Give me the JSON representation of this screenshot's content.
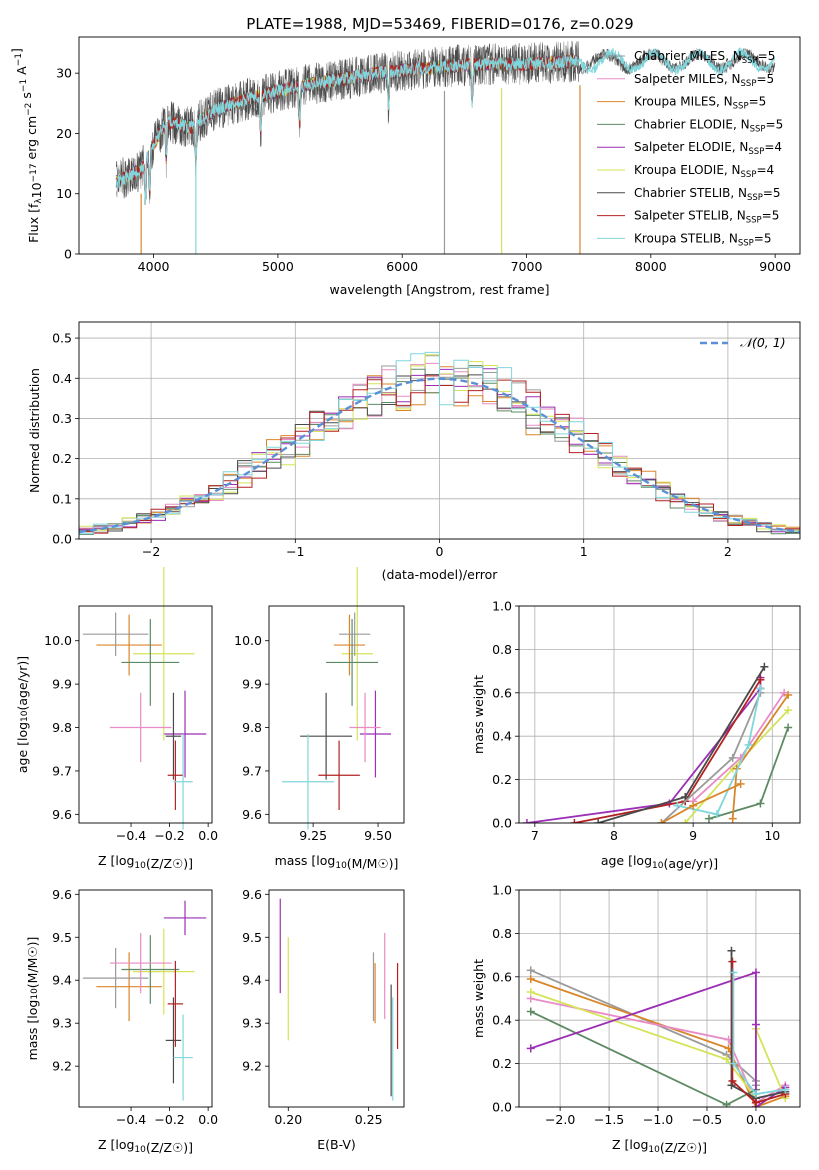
{
  "figure": {
    "title": "PLATE=1988, MJD=53469, FIBERID=0176, z=0.029"
  },
  "models": [
    {
      "name": "Chabrier MILES",
      "nssp": "5",
      "color": "#9a9a9a"
    },
    {
      "name": "Salpeter MILES",
      "nssp": "5",
      "color": "#e98bc6"
    },
    {
      "name": "Kroupa MILES",
      "nssp": "5",
      "color": "#d9862a"
    },
    {
      "name": "Chabrier ELODIE",
      "nssp": "5",
      "color": "#5d8a63"
    },
    {
      "name": "Salpeter ELODIE",
      "nssp": "4",
      "color": "#9b2fb5"
    },
    {
      "name": "Kroupa ELODIE",
      "nssp": "4",
      "color": "#d5e358"
    },
    {
      "name": "Chabrier STELIB",
      "nssp": "5",
      "color": "#4a4a4a"
    },
    {
      "name": "Salpeter STELIB",
      "nssp": "5",
      "color": "#b22222"
    },
    {
      "name": "Kroupa STELIB",
      "nssp": "5",
      "color": "#7fd6dc"
    }
  ],
  "chart_data": [
    {
      "id": "spectrum",
      "type": "line",
      "xlabel": "wavelength [Angstrom, rest frame]",
      "ylabel": "Flux [f_λ10^-17 erg cm^-2 s^-1 A^-1]",
      "xlim": [
        3400,
        9200
      ],
      "ylim": [
        0,
        36
      ],
      "xticks": [
        4000,
        5000,
        6000,
        7000,
        8000,
        9000
      ],
      "yticks": [
        0,
        10,
        20,
        30
      ],
      "legend": "top-right",
      "continuum_points": [
        [
          3700,
          12
        ],
        [
          3900,
          14
        ],
        [
          4000,
          18
        ],
        [
          4100,
          22
        ],
        [
          4300,
          21
        ],
        [
          4500,
          24
        ],
        [
          4800,
          26
        ],
        [
          5000,
          27
        ],
        [
          5200,
          28
        ],
        [
          5500,
          29
        ],
        [
          5800,
          30
        ],
        [
          6000,
          30.5
        ],
        [
          6300,
          31
        ],
        [
          6600,
          31.5
        ],
        [
          7000,
          31.5
        ],
        [
          7400,
          32
        ],
        [
          7800,
          32
        ],
        [
          8200,
          32
        ],
        [
          8600,
          32
        ],
        [
          9000,
          32
        ]
      ],
      "absorption_lines": [
        3934,
        3969,
        4102,
        4340,
        4861,
        5175,
        5890,
        6563
      ],
      "model_end_wavelength": 7420,
      "spurious_drops": [
        {
          "x": 3900,
          "model": "Kroupa MILES"
        },
        {
          "x": 4340,
          "model": "Kroupa STELIB"
        },
        {
          "x": 6340,
          "model": "Chabrier MILES"
        },
        {
          "x": 6800,
          "model": "Kroupa ELODIE"
        },
        {
          "x": 7430,
          "model": "Kroupa MILES"
        }
      ]
    },
    {
      "id": "residuals",
      "type": "histogram",
      "xlabel": "(data-model)/error",
      "ylabel": "Normed distribution",
      "xlim": [
        -2.5,
        2.5
      ],
      "ylim": [
        0,
        0.54
      ],
      "xticks": [
        -2,
        -1,
        0,
        1,
        2
      ],
      "yticks": [
        0.0,
        0.1,
        0.2,
        0.3,
        0.4,
        0.5
      ],
      "bin_width": 0.1,
      "reference": {
        "label": "𝒩(0, 1)",
        "color": "#5b8fd6",
        "mu": 0,
        "sigma": 1
      }
    },
    {
      "id": "age_vs_Z",
      "type": "errorbar",
      "xlabel": "Z [log₁₀(Z/Z☉)]",
      "ylabel": "age  [log₁₀(age/yr)]",
      "xlim": [
        -0.67,
        0.02
      ],
      "ylim": [
        9.58,
        10.08
      ],
      "xticks": [
        -0.4,
        -0.2,
        0.0
      ],
      "xticklabels": [
        "−0.4",
        "−0.2",
        "0.0"
      ],
      "yticks": [
        9.6,
        9.7,
        9.8,
        9.9,
        10.0
      ],
      "points": [
        {
          "model": "Salpeter ELODIE",
          "x": -0.12,
          "xerr": 0.11,
          "y": 9.785,
          "yerr": 0.1
        },
        {
          "model": "Kroupa ELODIE",
          "x": -0.23,
          "xerr": 0.16,
          "y": 9.97,
          "yerr": 0.2
        },
        {
          "model": "Kroupa MILES",
          "x": -0.41,
          "xerr": 0.17,
          "y": 9.99,
          "yerr": 0.07
        },
        {
          "model": "Chabrier ELODIE",
          "x": -0.3,
          "xerr": 0.15,
          "y": 9.95,
          "yerr": 0.1
        },
        {
          "model": "Chabrier MILES",
          "x": -0.48,
          "xerr": 0.17,
          "y": 10.015,
          "yerr": 0.05
        },
        {
          "model": "Salpeter MILES",
          "x": -0.35,
          "xerr": 0.16,
          "y": 9.8,
          "yerr": 0.08
        },
        {
          "model": "Chabrier STELIB",
          "x": -0.18,
          "xerr": 0.04,
          "y": 9.78,
          "yerr": 0.1
        },
        {
          "model": "Salpeter STELIB",
          "x": -0.17,
          "xerr": 0.04,
          "y": 9.69,
          "yerr": 0.08
        },
        {
          "model": "Kroupa STELIB",
          "x": -0.13,
          "xerr": 0.05,
          "y": 9.675,
          "yerr": 0.11
        }
      ]
    },
    {
      "id": "age_vs_mass",
      "type": "errorbar",
      "xlabel": "mass [log₁₀(M/M☉)]",
      "ylabel": "",
      "xlim": [
        9.08,
        9.6
      ],
      "ylim": [
        9.58,
        10.08
      ],
      "xticks": [
        9.25,
        9.5
      ],
      "xticklabels": [
        "9.25",
        "9.50"
      ],
      "yticks": [
        9.6,
        9.7,
        9.8,
        9.9,
        10.0
      ],
      "points": [
        {
          "model": "Salpeter ELODIE",
          "x": 9.49,
          "xerr": 0.06,
          "y": 9.785,
          "yerr": 0.1
        },
        {
          "model": "Kroupa ELODIE",
          "x": 9.42,
          "xerr": 0.06,
          "y": 9.97,
          "yerr": 0.2
        },
        {
          "model": "Kroupa MILES",
          "x": 9.39,
          "xerr": 0.06,
          "y": 9.99,
          "yerr": 0.07
        },
        {
          "model": "Chabrier ELODIE",
          "x": 9.4,
          "xerr": 0.1,
          "y": 9.95,
          "yerr": 0.1
        },
        {
          "model": "Chabrier MILES",
          "x": 9.41,
          "xerr": 0.06,
          "y": 10.015,
          "yerr": 0.05
        },
        {
          "model": "Salpeter MILES",
          "x": 9.45,
          "xerr": 0.06,
          "y": 9.8,
          "yerr": 0.08
        },
        {
          "model": "Chabrier STELIB",
          "x": 9.3,
          "xerr": 0.1,
          "y": 9.78,
          "yerr": 0.1
        },
        {
          "model": "Salpeter STELIB",
          "x": 9.35,
          "xerr": 0.08,
          "y": 9.69,
          "yerr": 0.08
        },
        {
          "model": "Kroupa STELIB",
          "x": 9.23,
          "xerr": 0.1,
          "y": 9.675,
          "yerr": 0.11
        }
      ]
    },
    {
      "id": "weight_vs_age",
      "type": "line",
      "xlabel": "age  [log₁₀(age/yr)]",
      "ylabel": "mass weight",
      "xlim": [
        6.8,
        10.35
      ],
      "ylim": [
        0,
        1
      ],
      "xticks": [
        7,
        8,
        9,
        10
      ],
      "yticks": [
        0.0,
        0.2,
        0.4,
        0.6,
        0.8,
        1.0
      ],
      "series": [
        {
          "model": "Salpeter ELODIE",
          "x": [
            6.9,
            8.7,
            9.85,
            9.85
          ],
          "y": [
            0.0,
            0.09,
            0.62,
            0.67
          ]
        },
        {
          "model": "Salpeter STELIB",
          "x": [
            7.5,
            8.9,
            9.85
          ],
          "y": [
            0.0,
            0.1,
            0.66
          ]
        },
        {
          "model": "Chabrier STELIB",
          "x": [
            7.8,
            8.9,
            9.9
          ],
          "y": [
            0.0,
            0.12,
            0.72
          ]
        },
        {
          "model": "Chabrier MILES",
          "x": [
            8.6,
            9.5,
            9.85
          ],
          "y": [
            0.0,
            0.3,
            0.6
          ]
        },
        {
          "model": "Kroupa ELODIE",
          "x": [
            8.9,
            9.5,
            10.2
          ],
          "y": [
            0.0,
            0.25,
            0.52
          ]
        },
        {
          "model": "Salpeter MILES",
          "x": [
            9.0,
            9.6,
            10.15
          ],
          "y": [
            0.1,
            0.3,
            0.6
          ]
        },
        {
          "model": "Chabrier ELODIE",
          "x": [
            9.2,
            9.85,
            10.2
          ],
          "y": [
            0.02,
            0.09,
            0.44
          ]
        },
        {
          "model": "Kroupa MILES",
          "x": [
            9.5,
            9.55,
            10.2
          ],
          "y": [
            0.02,
            0.25,
            0.59
          ]
        },
        {
          "model": "Kroupa STELIB",
          "x": [
            8.8,
            9.3,
            9.7,
            9.85
          ],
          "y": [
            0.08,
            0.04,
            0.36,
            0.62
          ]
        },
        {
          "model": "Kroupa MILES",
          "x": [
            8.6,
            9.0,
            9.6
          ],
          "y": [
            0.0,
            0.08,
            0.18
          ]
        }
      ]
    },
    {
      "id": "mass_vs_Z",
      "type": "errorbar",
      "xlabel": "Z [log₁₀(Z/Z☉)]",
      "ylabel": "mass [log₁₀(M/M☉)]",
      "xlim": [
        -0.67,
        0.02
      ],
      "ylim": [
        9.105,
        9.61
      ],
      "xticks": [
        -0.4,
        -0.2,
        0.0
      ],
      "xticklabels": [
        "−0.4",
        "−0.2",
        "0.0"
      ],
      "yticks": [
        9.2,
        9.3,
        9.4,
        9.5,
        9.6
      ],
      "points": [
        {
          "model": "Salpeter ELODIE",
          "x": -0.12,
          "xerr": 0.11,
          "y": 9.545,
          "yerr": 0.04
        },
        {
          "model": "Kroupa ELODIE",
          "x": -0.23,
          "xerr": 0.16,
          "y": 9.42,
          "yerr": 0.1
        },
        {
          "model": "Kroupa MILES",
          "x": -0.41,
          "xerr": 0.17,
          "y": 9.385,
          "yerr": 0.08
        },
        {
          "model": "Chabrier ELODIE",
          "x": -0.3,
          "xerr": 0.15,
          "y": 9.425,
          "yerr": 0.08
        },
        {
          "model": "Chabrier MILES",
          "x": -0.48,
          "xerr": 0.17,
          "y": 9.405,
          "yerr": 0.07
        },
        {
          "model": "Salpeter MILES",
          "x": -0.35,
          "xerr": 0.16,
          "y": 9.44,
          "yerr": 0.07
        },
        {
          "model": "Chabrier STELIB",
          "x": -0.18,
          "xerr": 0.04,
          "y": 9.26,
          "yerr": 0.1
        },
        {
          "model": "Salpeter STELIB",
          "x": -0.17,
          "xerr": 0.04,
          "y": 9.345,
          "yerr": 0.1
        },
        {
          "model": "Kroupa STELIB",
          "x": -0.13,
          "xerr": 0.05,
          "y": 9.22,
          "yerr": 0.1
        }
      ]
    },
    {
      "id": "mass_vs_ebv",
      "type": "errorbar",
      "xlabel": "E(B-V)",
      "ylabel": "",
      "xlim": [
        0.188,
        0.272
      ],
      "ylim": [
        9.105,
        9.61
      ],
      "xticks": [
        0.2,
        0.25
      ],
      "xticklabels": [
        "0.20",
        "0.25"
      ],
      "yticks": [
        9.2,
        9.3,
        9.4,
        9.5,
        9.6
      ],
      "points": [
        {
          "model": "Salpeter ELODIE",
          "x": 0.195,
          "xerr": 0,
          "y": 9.48,
          "yerr": 0.11
        },
        {
          "model": "Kroupa ELODIE",
          "x": 0.2,
          "xerr": 0,
          "y": 9.38,
          "yerr": 0.12
        },
        {
          "model": "Chabrier MILES",
          "x": 0.253,
          "xerr": 0,
          "y": 9.385,
          "yerr": 0.08
        },
        {
          "model": "Kroupa MILES",
          "x": 0.254,
          "xerr": 0,
          "y": 9.37,
          "yerr": 0.07
        },
        {
          "model": "Salpeter MILES",
          "x": 0.26,
          "xerr": 0,
          "y": 9.41,
          "yerr": 0.1
        },
        {
          "model": "Chabrier STELIB",
          "x": 0.264,
          "xerr": 0,
          "y": 9.26,
          "yerr": 0.13
        },
        {
          "model": "Kroupa STELIB",
          "x": 0.265,
          "xerr": 0,
          "y": 9.24,
          "yerr": 0.12
        },
        {
          "model": "Salpeter STELIB",
          "x": 0.268,
          "xerr": 0,
          "y": 9.34,
          "yerr": 0.1
        }
      ]
    },
    {
      "id": "weight_vs_Z",
      "type": "line",
      "xlabel": "Z [log₁₀(Z/Z☉)]",
      "ylabel": "mass weight",
      "xlim": [
        -2.42,
        0.45
      ],
      "ylim": [
        0,
        1
      ],
      "xticks": [
        -2.0,
        -1.5,
        -1.0,
        -0.5,
        0.0
      ],
      "xticklabels": [
        "−2.0",
        "−1.5",
        "−1.0",
        "−0.5",
        "0.0"
      ],
      "yticks": [
        0.0,
        0.2,
        0.4,
        0.6,
        0.8,
        1.0
      ],
      "series": [
        {
          "model": "Chabrier MILES",
          "x": [
            -2.3,
            -0.3,
            0.0,
            0.0
          ],
          "y": [
            0.63,
            0.24,
            0.12,
            0.1
          ]
        },
        {
          "model": "Kroupa MILES",
          "x": [
            -2.3,
            -0.28,
            0.0,
            0.3
          ],
          "y": [
            0.59,
            0.27,
            0.0,
            0.05
          ]
        },
        {
          "model": "Salpeter MILES",
          "x": [
            -2.3,
            -0.28,
            0.0,
            0.3
          ],
          "y": [
            0.5,
            0.31,
            0.02,
            0.1
          ]
        },
        {
          "model": "Kroupa ELODIE",
          "x": [
            -2.3,
            -0.3,
            0.0,
            0.0,
            0.3
          ],
          "y": [
            0.53,
            0.22,
            0.04,
            0.36,
            0.04
          ]
        },
        {
          "model": "Chabrier ELODIE",
          "x": [
            -2.3,
            -0.3,
            0.0
          ],
          "y": [
            0.44,
            0.01,
            0.08
          ]
        },
        {
          "model": "Salpeter ELODIE",
          "x": [
            -2.3,
            0.0,
            0.0,
            0.0,
            0.3
          ],
          "y": [
            0.27,
            0.62,
            0.38,
            0.0,
            0.09
          ]
        },
        {
          "model": "Chabrier STELIB",
          "x": [
            -0.25,
            -0.25,
            0.0,
            0.3
          ],
          "y": [
            0.72,
            0.1,
            0.04,
            0.07
          ]
        },
        {
          "model": "Salpeter STELIB",
          "x": [
            -0.24,
            -0.24,
            0.0,
            0.3
          ],
          "y": [
            0.67,
            0.12,
            0.02,
            0.06
          ]
        },
        {
          "model": "Kroupa STELIB",
          "x": [
            -0.23,
            -0.23,
            0.0,
            0.3
          ],
          "y": [
            0.62,
            0.2,
            0.06,
            0.08
          ]
        }
      ]
    }
  ]
}
